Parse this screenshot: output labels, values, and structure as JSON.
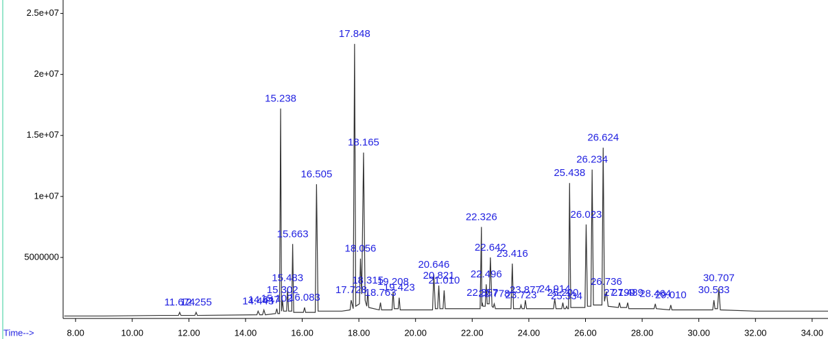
{
  "chart_data": {
    "type": "line",
    "x_label": "Time-->",
    "xlim": [
      7.56,
      34.56
    ],
    "ylim": [
      0,
      26100000
    ],
    "xticks": [
      {
        "value": 8,
        "label": "8.00"
      },
      {
        "value": 10,
        "label": "10.00"
      },
      {
        "value": 12,
        "label": "12.00"
      },
      {
        "value": 14,
        "label": "14.00"
      },
      {
        "value": 16,
        "label": "16.00"
      },
      {
        "value": 18,
        "label": "18.00"
      },
      {
        "value": 20,
        "label": "20.00"
      },
      {
        "value": 22,
        "label": "22.00"
      },
      {
        "value": 24,
        "label": "24.00"
      },
      {
        "value": 26,
        "label": "26.00"
      },
      {
        "value": 28,
        "label": "28.00"
      },
      {
        "value": 30,
        "label": "30.00"
      },
      {
        "value": 32,
        "label": "32.00"
      },
      {
        "value": 34,
        "label": "34.00"
      }
    ],
    "yticks": [
      5000000,
      {
        "value": 10000000,
        "label": "1e+07"
      },
      {
        "value": 15000000,
        "label": "1.5e+07"
      },
      {
        "value": 20000000,
        "label": "2e+07"
      },
      {
        "value": 25000000,
        "label": "2.5e+07"
      }
    ],
    "series": [
      {
        "color": "#333333",
        "x": [
          7.6,
          9.0,
          11.0,
          11.63,
          11.674,
          11.72,
          12.21,
          12.255,
          12.3,
          14.4,
          14.443,
          14.5,
          14.6,
          14.647,
          14.7,
          15.06,
          15.102,
          15.14,
          15.2,
          15.238,
          15.27,
          15.302,
          15.34,
          15.45,
          15.483,
          15.52,
          15.63,
          15.663,
          15.7,
          16.04,
          16.083,
          16.12,
          16.46,
          16.505,
          16.56,
          17.4,
          17.69,
          17.728,
          17.8,
          17.848,
          17.89,
          18.02,
          18.056,
          18.1,
          18.165,
          18.22,
          18.28,
          18.315,
          18.35,
          18.72,
          18.763,
          18.8,
          19.17,
          19.208,
          19.25,
          19.39,
          19.423,
          19.46,
          20.6,
          20.646,
          20.7,
          20.78,
          20.821,
          20.86,
          20.97,
          21.01,
          21.05,
          22.28,
          22.326,
          22.34,
          22.357,
          22.38,
          22.46,
          22.496,
          22.53,
          22.6,
          22.642,
          22.7,
          22.74,
          22.778,
          22.82,
          23.37,
          23.416,
          23.46,
          23.69,
          23.723,
          23.76,
          23.84,
          23.877,
          23.92,
          24.87,
          24.914,
          24.96,
          25.16,
          25.2,
          25.24,
          25.3,
          25.334,
          25.37,
          25.4,
          25.438,
          25.48,
          25.98,
          26.023,
          26.07,
          26.19,
          26.234,
          26.28,
          26.58,
          26.624,
          26.67,
          26.736,
          26.8,
          27.16,
          27.199,
          27.24,
          27.45,
          27.489,
          27.53,
          28.42,
          28.464,
          28.5,
          28.97,
          29.01,
          29.05,
          30.49,
          30.533,
          30.57,
          30.66,
          30.707,
          30.76,
          32.0,
          34.56
        ],
        "values": [
          200000,
          200000,
          250000,
          250000,
          500000,
          250000,
          250000,
          500000,
          250000,
          300000,
          600000,
          300000,
          300000,
          700000,
          300000,
          400000,
          800000,
          400000,
          400000,
          17200000,
          600000,
          1500000,
          600000,
          600000,
          2500000,
          600000,
          600000,
          6100000,
          500000,
          500000,
          900000,
          500000,
          500000,
          11000000,
          600000,
          600000,
          700000,
          1500000,
          800000,
          22500000,
          1000000,
          1200000,
          4900000,
          2000000,
          13600000,
          1500000,
          1000000,
          2300000,
          900000,
          700000,
          1300000,
          700000,
          700000,
          2200000,
          800000,
          800000,
          1700000,
          700000,
          700000,
          3600000,
          800000,
          800000,
          2700000,
          800000,
          800000,
          2300000,
          800000,
          800000,
          7500000,
          1000000,
          1300000,
          1000000,
          1000000,
          2800000,
          1200000,
          1200000,
          5000000,
          1000000,
          900000,
          1200000,
          800000,
          800000,
          4500000,
          800000,
          800000,
          1100000,
          800000,
          800000,
          1500000,
          800000,
          800000,
          1600000,
          800000,
          800000,
          1300000,
          800000,
          800000,
          1000000,
          800000,
          800000,
          11100000,
          900000,
          900000,
          7700000,
          1000000,
          1000000,
          12200000,
          1100000,
          1100000,
          14000000,
          1400000,
          2200000,
          1000000,
          900000,
          1300000,
          900000,
          900000,
          1300000,
          800000,
          800000,
          1200000,
          800000,
          700000,
          1100000,
          700000,
          700000,
          1500000,
          800000,
          800000,
          2500000,
          700000,
          600000,
          600000
        ]
      }
    ],
    "annotations": [
      {
        "text": "11.674",
        "x": 11.674,
        "y": 500000
      },
      {
        "text": "12.255",
        "x": 12.255,
        "y": 500000
      },
      {
        "text": "14.443",
        "x": 14.443,
        "y": 600000
      },
      {
        "text": "14.647",
        "x": 14.647,
        "y": 700000
      },
      {
        "text": "15.102",
        "x": 15.102,
        "y": 800000
      },
      {
        "text": "15.238",
        "x": 15.238,
        "y": 17200000
      },
      {
        "text": "15.302",
        "x": 15.302,
        "y": 1500000
      },
      {
        "text": "15.483",
        "x": 15.483,
        "y": 2500000
      },
      {
        "text": "15.663",
        "x": 15.663,
        "y": 6100000
      },
      {
        "text": "16.083",
        "x": 16.083,
        "y": 900000
      },
      {
        "text": "16.505",
        "x": 16.505,
        "y": 11000000
      },
      {
        "text": "17.728",
        "x": 17.728,
        "y": 1500000
      },
      {
        "text": "17.848",
        "x": 17.848,
        "y": 22500000
      },
      {
        "text": "18.056",
        "x": 18.056,
        "y": 4900000
      },
      {
        "text": "18.165",
        "x": 18.165,
        "y": 13600000
      },
      {
        "text": "18.315",
        "x": 18.315,
        "y": 2300000
      },
      {
        "text": "18.763",
        "x": 18.763,
        "y": 1300000
      },
      {
        "text": "19.208",
        "x": 19.208,
        "y": 2200000
      },
      {
        "text": "19.423",
        "x": 19.423,
        "y": 1700000
      },
      {
        "text": "20.646",
        "x": 20.646,
        "y": 3600000
      },
      {
        "text": "20.821",
        "x": 20.821,
        "y": 2700000
      },
      {
        "text": "21.010",
        "x": 21.01,
        "y": 2300000
      },
      {
        "text": "22.326",
        "x": 22.326,
        "y": 7500000
      },
      {
        "text": "22.357",
        "x": 22.357,
        "y": 1300000
      },
      {
        "text": "22.496",
        "x": 22.496,
        "y": 2800000
      },
      {
        "text": "22.642",
        "x": 22.642,
        "y": 5000000
      },
      {
        "text": "22.778",
        "x": 22.778,
        "y": 1200000
      },
      {
        "text": "23.416",
        "x": 23.416,
        "y": 4500000
      },
      {
        "text": "23.723",
        "x": 23.723,
        "y": 1100000
      },
      {
        "text": "23.877",
        "x": 23.877,
        "y": 1500000
      },
      {
        "text": "24.914",
        "x": 24.914,
        "y": 1600000
      },
      {
        "text": "25.200",
        "x": 25.2,
        "y": 1300000
      },
      {
        "text": "25.334",
        "x": 25.334,
        "y": 1000000
      },
      {
        "text": "25.438",
        "x": 25.438,
        "y": 11100000
      },
      {
        "text": "26.023",
        "x": 26.023,
        "y": 7700000
      },
      {
        "text": "26.234",
        "x": 26.234,
        "y": 12200000
      },
      {
        "text": "26.624",
        "x": 26.624,
        "y": 14000000
      },
      {
        "text": "26.736",
        "x": 26.736,
        "y": 2200000
      },
      {
        "text": "27.199",
        "x": 27.199,
        "y": 1300000
      },
      {
        "text": "27.489",
        "x": 27.489,
        "y": 1300000
      },
      {
        "text": "28.464",
        "x": 28.464,
        "y": 1200000
      },
      {
        "text": "29.010",
        "x": 29.01,
        "y": 1100000
      },
      {
        "text": "30.533",
        "x": 30.533,
        "y": 1500000
      },
      {
        "text": "30.707",
        "x": 30.707,
        "y": 2500000
      }
    ]
  }
}
